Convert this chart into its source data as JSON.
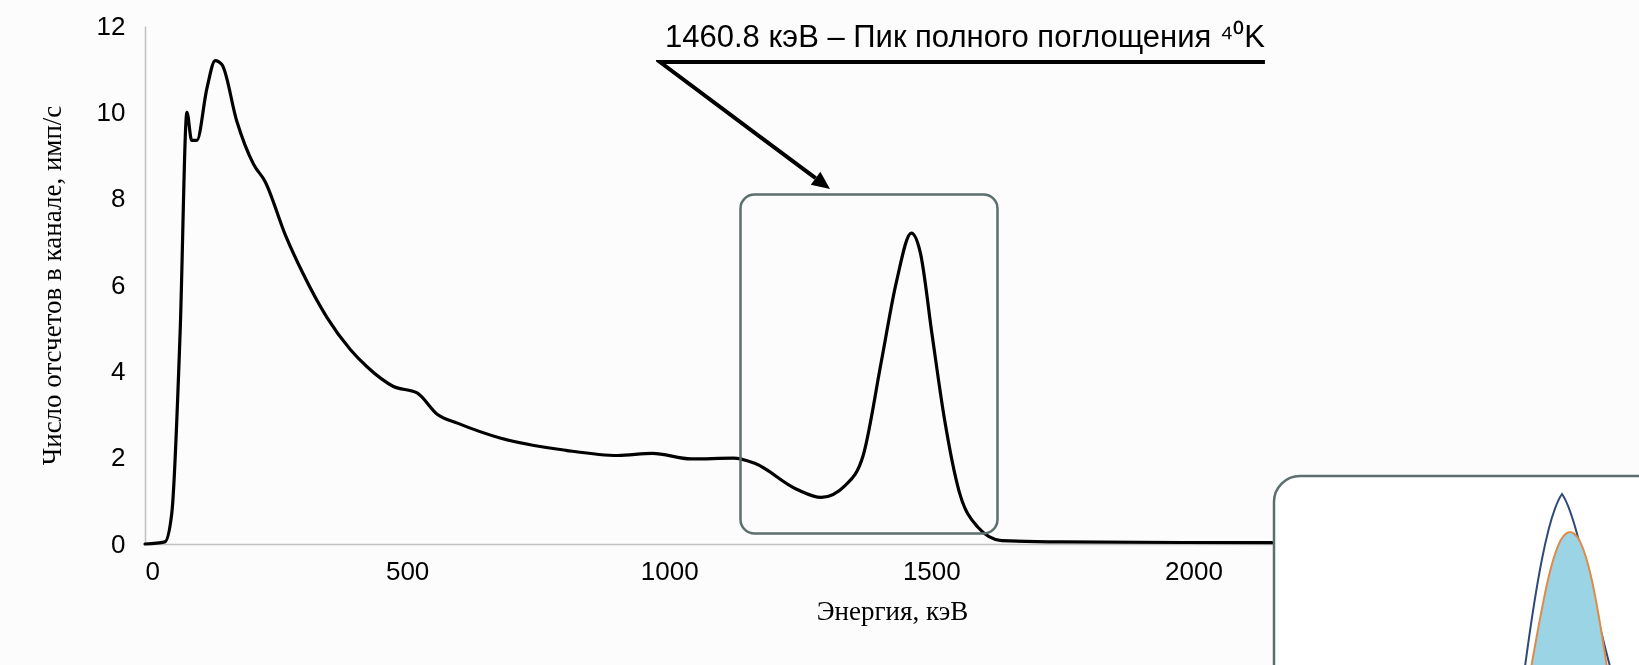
{
  "chart_data": {
    "type": "line",
    "xlabel": "Энергия, кэВ",
    "ylabel": "Число отсчетов в канале, имп/с",
    "x": [
      0,
      38,
      51,
      67,
      80,
      89,
      99,
      118,
      134,
      147,
      175,
      207,
      229,
      268,
      300,
      347,
      392,
      424,
      474,
      519,
      558,
      596,
      679,
      803,
      902,
      968,
      1042,
      1122,
      1163,
      1243,
      1290,
      1336,
      1370,
      1405,
      1433,
      1462,
      1479,
      1502,
      1525,
      1553,
      1588,
      1634,
      1748,
      2150
    ],
    "series": [
      {
        "color": "#000000",
        "values": [
          0,
          0.05,
          0.7,
          4.9,
          10.0,
          9.35,
          9.35,
          10.55,
          11.2,
          11.1,
          9.8,
          8.8,
          8.4,
          7.15,
          6.3,
          5.25,
          4.5,
          4.1,
          3.65,
          3.5,
          3.0,
          2.8,
          2.45,
          2.17,
          2.05,
          2.1,
          1.97,
          1.99,
          1.87,
          1.27,
          1.08,
          1.36,
          2.05,
          4.25,
          6.05,
          7.2,
          6.75,
          4.8,
          2.9,
          1.22,
          0.4,
          0.08,
          0.05,
          0.03
        ]
      }
    ],
    "xlim": [
      0,
      2850
    ],
    "ylim": [
      0,
      12
    ],
    "xticks": [
      0,
      500,
      1000,
      1500,
      2000
    ],
    "yticks": [
      0,
      2,
      4,
      6,
      8,
      10,
      12
    ],
    "grid": false,
    "marker": "none",
    "line_style": "solid",
    "annotations": [
      "1460.8 кэВ – Пик полного поглощения ⁴⁰K"
    ]
  }
}
